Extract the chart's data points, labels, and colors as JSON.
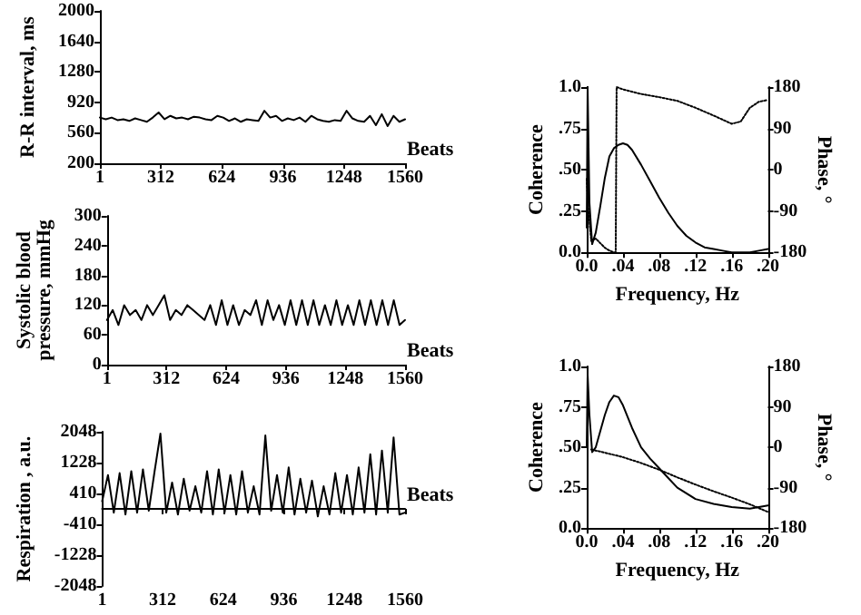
{
  "chart_data": [
    {
      "type": "line",
      "ylabel": "R-R interval, ms",
      "xlabel": "Beats",
      "xlim": [
        1,
        1560
      ],
      "xticks": [
        1,
        312,
        624,
        936,
        1248,
        1560
      ],
      "ylim": [
        200,
        2000
      ],
      "yticks": [
        200,
        560,
        920,
        1280,
        1640,
        2000
      ],
      "grid": false,
      "marker": "none",
      "series": [
        {
          "color": "#000000",
          "line_style": "solid",
          "x": [
            1,
            31,
            61,
            91,
            121,
            151,
            181,
            211,
            241,
            271,
            301,
            331,
            361,
            391,
            421,
            451,
            481,
            511,
            541,
            571,
            601,
            631,
            661,
            691,
            721,
            751,
            781,
            811,
            841,
            871,
            901,
            931,
            961,
            991,
            1021,
            1051,
            1081,
            1111,
            1141,
            1171,
            1201,
            1231,
            1261,
            1291,
            1321,
            1351,
            1381,
            1411,
            1441,
            1471,
            1501,
            1531,
            1560
          ],
          "values": [
            740,
            720,
            740,
            710,
            720,
            700,
            730,
            710,
            690,
            740,
            800,
            720,
            760,
            730,
            740,
            720,
            750,
            740,
            720,
            710,
            760,
            740,
            700,
            730,
            690,
            720,
            710,
            700,
            820,
            740,
            760,
            700,
            730,
            710,
            740,
            690,
            760,
            720,
            700,
            690,
            710,
            700,
            820,
            730,
            700,
            690,
            760,
            650,
            780,
            640,
            760,
            690,
            720
          ]
        }
      ]
    },
    {
      "type": "line",
      "ylabel": "Systolic blood pressure, mmHg",
      "xlabel": "Beats",
      "xlim": [
        1,
        1560
      ],
      "xticks": [
        1,
        312,
        624,
        936,
        1248,
        1560
      ],
      "ylim": [
        0,
        300
      ],
      "yticks": [
        0,
        60,
        120,
        180,
        240,
        300
      ],
      "grid": false,
      "marker": "none",
      "series": [
        {
          "color": "#000000",
          "line_style": "solid",
          "x": [
            1,
            31,
            61,
            91,
            121,
            151,
            181,
            211,
            241,
            271,
            301,
            331,
            361,
            391,
            421,
            451,
            481,
            511,
            541,
            571,
            601,
            631,
            661,
            691,
            721,
            751,
            781,
            811,
            841,
            871,
            901,
            931,
            961,
            991,
            1021,
            1051,
            1081,
            1111,
            1141,
            1171,
            1201,
            1231,
            1261,
            1291,
            1321,
            1351,
            1381,
            1411,
            1441,
            1471,
            1501,
            1531,
            1560
          ],
          "values": [
            90,
            110,
            80,
            120,
            100,
            110,
            90,
            120,
            100,
            120,
            140,
            90,
            110,
            100,
            120,
            110,
            100,
            90,
            120,
            80,
            130,
            80,
            120,
            80,
            110,
            100,
            130,
            80,
            130,
            90,
            120,
            80,
            130,
            80,
            130,
            80,
            130,
            80,
            120,
            80,
            130,
            80,
            120,
            80,
            130,
            80,
            130,
            80,
            130,
            80,
            130,
            80,
            90
          ]
        }
      ]
    },
    {
      "type": "line",
      "ylabel": "Respiration , a.u.",
      "xlabel": "Beats",
      "xlim": [
        1,
        1560
      ],
      "xticks": [
        1,
        312,
        624,
        936,
        1248,
        1560
      ],
      "ylim": [
        -2048,
        2048
      ],
      "yticks": [
        -2048,
        -1228,
        -410,
        410,
        1228,
        2048
      ],
      "grid": false,
      "marker": "none",
      "series": [
        {
          "color": "#000000",
          "line_style": "solid",
          "x": [
            1,
            31,
            61,
            91,
            121,
            151,
            181,
            211,
            241,
            271,
            301,
            331,
            361,
            391,
            421,
            451,
            481,
            511,
            541,
            571,
            601,
            631,
            661,
            691,
            721,
            751,
            781,
            811,
            841,
            871,
            901,
            931,
            961,
            991,
            1021,
            1051,
            1081,
            1111,
            1141,
            1171,
            1201,
            1231,
            1261,
            1291,
            1321,
            1351,
            1381,
            1411,
            1441,
            1471,
            1501,
            1531,
            1560
          ],
          "values": [
            200,
            900,
            -100,
            950,
            -150,
            1000,
            -100,
            1050,
            -50,
            1000,
            2000,
            -100,
            700,
            -150,
            800,
            -50,
            600,
            -100,
            1000,
            -150,
            1050,
            -100,
            900,
            -150,
            1000,
            -100,
            600,
            -150,
            1950,
            -50,
            900,
            -100,
            1100,
            -150,
            800,
            -100,
            750,
            -200,
            600,
            -150,
            950,
            -100,
            900,
            -150,
            1100,
            -100,
            1450,
            -150,
            1550,
            -100,
            1900,
            -150,
            -100
          ]
        }
      ]
    },
    {
      "type": "line",
      "ylabel": "Coherence",
      "y2label": "Phase, °",
      "xlabel": "Frequency, Hz",
      "xlim": [
        0,
        0.2
      ],
      "xticks": [
        {
          "value": 0,
          "label": "0.0"
        },
        {
          "value": 0.04,
          "label": ".04"
        },
        {
          "value": 0.08,
          "label": ".08"
        },
        {
          "value": 0.12,
          "label": ".12"
        },
        {
          "value": 0.16,
          "label": ".16"
        },
        {
          "value": 0.2,
          "label": ".20"
        }
      ],
      "ylim": [
        0,
        1
      ],
      "yticks": [
        {
          "value": 0,
          "label": "0.0"
        },
        {
          "value": 0.25,
          "label": ".25"
        },
        {
          "value": 0.5,
          "label": ".50"
        },
        {
          "value": 0.75,
          "label": ".75"
        },
        {
          "value": 1,
          "label": "1.0"
        }
      ],
      "y2lim": [
        -180,
        180
      ],
      "y2ticks": [
        -180,
        -90,
        0,
        90,
        180
      ],
      "grid": false,
      "marker": "none",
      "series": [
        {
          "color": "#000000",
          "line_style": "solid",
          "x": [
            0,
            0.001,
            0.003,
            0.006,
            0.01,
            0.015,
            0.02,
            0.025,
            0.03,
            0.035,
            0.04,
            0.045,
            0.05,
            0.06,
            0.07,
            0.08,
            0.09,
            0.1,
            0.11,
            0.12,
            0.13,
            0.14,
            0.15,
            0.16,
            0.17,
            0.18,
            0.19,
            0.2
          ],
          "values": [
            0.15,
            1.0,
            0.3,
            0.05,
            0.12,
            0.28,
            0.45,
            0.58,
            0.63,
            0.65,
            0.66,
            0.65,
            0.62,
            0.53,
            0.43,
            0.33,
            0.24,
            0.16,
            0.1,
            0.06,
            0.03,
            0.02,
            0.01,
            0,
            0,
            0,
            0.01,
            0.02
          ]
        },
        {
          "color": "#000000",
          "line_style": "dotted",
          "axis": "y2",
          "x": [
            0,
            0.002,
            0.005,
            0.01,
            0.015,
            0.02,
            0.025,
            0.03,
            0.032,
            0.033,
            0.04,
            0.06,
            0.08,
            0.1,
            0.12,
            0.14,
            0.16,
            0.17,
            0.18,
            0.19,
            0.2
          ],
          "values": [
            -20,
            -90,
            -155,
            -150,
            -160,
            -170,
            -176,
            -180,
            -180,
            180,
            175,
            165,
            158,
            150,
            135,
            118,
            100,
            105,
            135,
            148,
            152
          ]
        }
      ]
    },
    {
      "type": "line",
      "ylabel": "Coherence",
      "y2label": "Phase, °",
      "xlabel": "Frequency, Hz",
      "xlim": [
        0,
        0.2
      ],
      "xticks": [
        {
          "value": 0,
          "label": "0.0"
        },
        {
          "value": 0.04,
          "label": ".04"
        },
        {
          "value": 0.08,
          "label": ".08"
        },
        {
          "value": 0.12,
          "label": ".12"
        },
        {
          "value": 0.16,
          "label": ".16"
        },
        {
          "value": 0.2,
          "label": ".20"
        }
      ],
      "ylim": [
        0,
        1
      ],
      "yticks": [
        {
          "value": 0,
          "label": "0.0"
        },
        {
          "value": 0.25,
          "label": ".25"
        },
        {
          "value": 0.5,
          "label": ".50"
        },
        {
          "value": 0.75,
          "label": ".75"
        },
        {
          "value": 1,
          "label": "1.0"
        }
      ],
      "y2lim": [
        -180,
        180
      ],
      "y2ticks": [
        -180,
        -90,
        0,
        90,
        180
      ],
      "grid": false,
      "marker": "none",
      "series": [
        {
          "color": "#000000",
          "line_style": "solid",
          "x": [
            0,
            0.001,
            0.003,
            0.006,
            0.01,
            0.015,
            0.02,
            0.025,
            0.03,
            0.035,
            0.04,
            0.05,
            0.06,
            0.07,
            0.08,
            0.09,
            0.1,
            0.12,
            0.14,
            0.16,
            0.18,
            0.19,
            0.2
          ],
          "values": [
            0.5,
            0.95,
            0.7,
            0.47,
            0.5,
            0.6,
            0.7,
            0.78,
            0.82,
            0.81,
            0.76,
            0.62,
            0.5,
            0.43,
            0.37,
            0.31,
            0.25,
            0.18,
            0.15,
            0.13,
            0.12,
            0.13,
            0.14
          ]
        },
        {
          "color": "#000000",
          "line_style": "dotted",
          "axis": "y2",
          "x": [
            0.005,
            0.02,
            0.04,
            0.06,
            0.08,
            0.1,
            0.12,
            0.14,
            0.16,
            0.18,
            0.2
          ],
          "values": [
            -5,
            -12,
            -22,
            -35,
            -50,
            -67,
            -83,
            -98,
            -112,
            -127,
            -144
          ]
        }
      ]
    }
  ]
}
